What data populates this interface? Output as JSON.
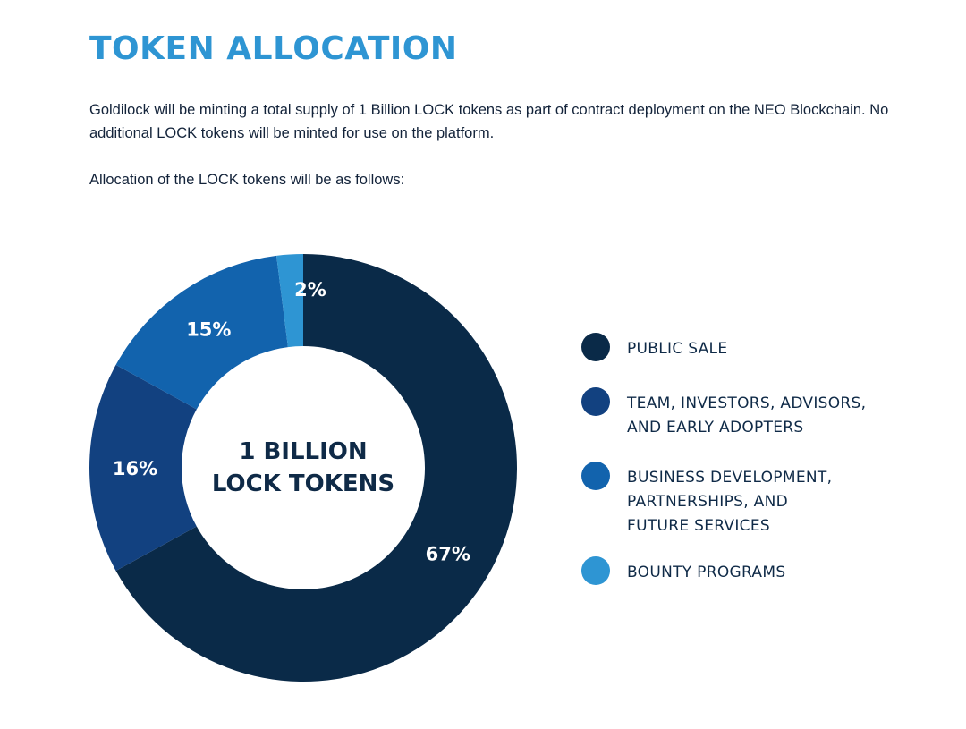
{
  "heading": "TOKEN ALLOCATION",
  "intro": "Goldilock will be minting a total supply of 1 Billion LOCK tokens as part of contract deployment on the NEO Blockchain. No additional LOCK tokens will be minted for use on the platform.",
  "lead": "Allocation of the LOCK tokens will be as follows:",
  "chart_data": {
    "type": "pie",
    "variant": "donut",
    "title": "",
    "center_label": [
      "1 BILLION",
      "LOCK TOKENS"
    ],
    "legend_position": "right",
    "slices": [
      {
        "name": "PUBLIC SALE",
        "value": 67,
        "label": "67%",
        "color": "#0a2a48"
      },
      {
        "name": "TEAM, INVESTORS, ADVISORS,\nAND EARLY ADOPTERS",
        "value": 16,
        "label": "16%",
        "color": "#124180"
      },
      {
        "name": "BUSINESS DEVELOPMENT,\nPARTNERSHIPS, AND\nFUTURE SERVICES",
        "value": 15,
        "label": "15%",
        "color": "#1263ad"
      },
      {
        "name": "BOUNTY PROGRAMS",
        "value": 2,
        "label": "2%",
        "color": "#2e95d3"
      }
    ]
  }
}
